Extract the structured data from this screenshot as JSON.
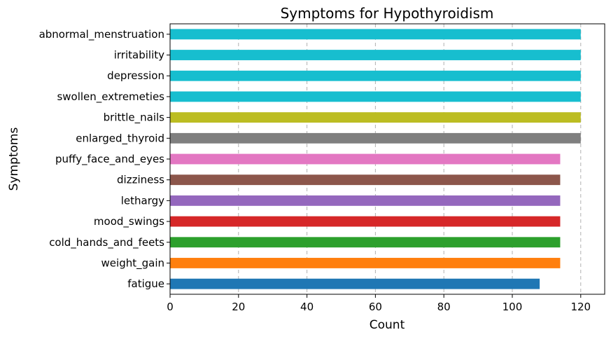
{
  "chart_data": {
    "type": "bar",
    "orientation": "horizontal",
    "title": "Symptoms for Hypothyroidism",
    "xlabel": "Count",
    "ylabel": "Symptoms",
    "xlim": [
      0,
      127
    ],
    "xticks": [
      0,
      20,
      40,
      60,
      80,
      100,
      120
    ],
    "grid": "x-dashed",
    "categories": [
      "fatigue",
      "weight_gain",
      "cold_hands_and_feets",
      "mood_swings",
      "lethargy",
      "dizziness",
      "puffy_face_and_eyes",
      "enlarged_thyroid",
      "brittle_nails",
      "swollen_extremeties",
      "depression",
      "irritability",
      "abnormal_menstruation"
    ],
    "values": [
      108,
      114,
      114,
      114,
      114,
      114,
      114,
      120,
      120,
      120,
      120,
      120,
      120
    ],
    "colors": [
      "#1f77b4",
      "#ff7f0e",
      "#2ca02c",
      "#d62728",
      "#9467bd",
      "#8c564b",
      "#e377c2",
      "#7f7f7f",
      "#bcbd22",
      "#17becf",
      "#17becf",
      "#17becf",
      "#17becf"
    ]
  }
}
